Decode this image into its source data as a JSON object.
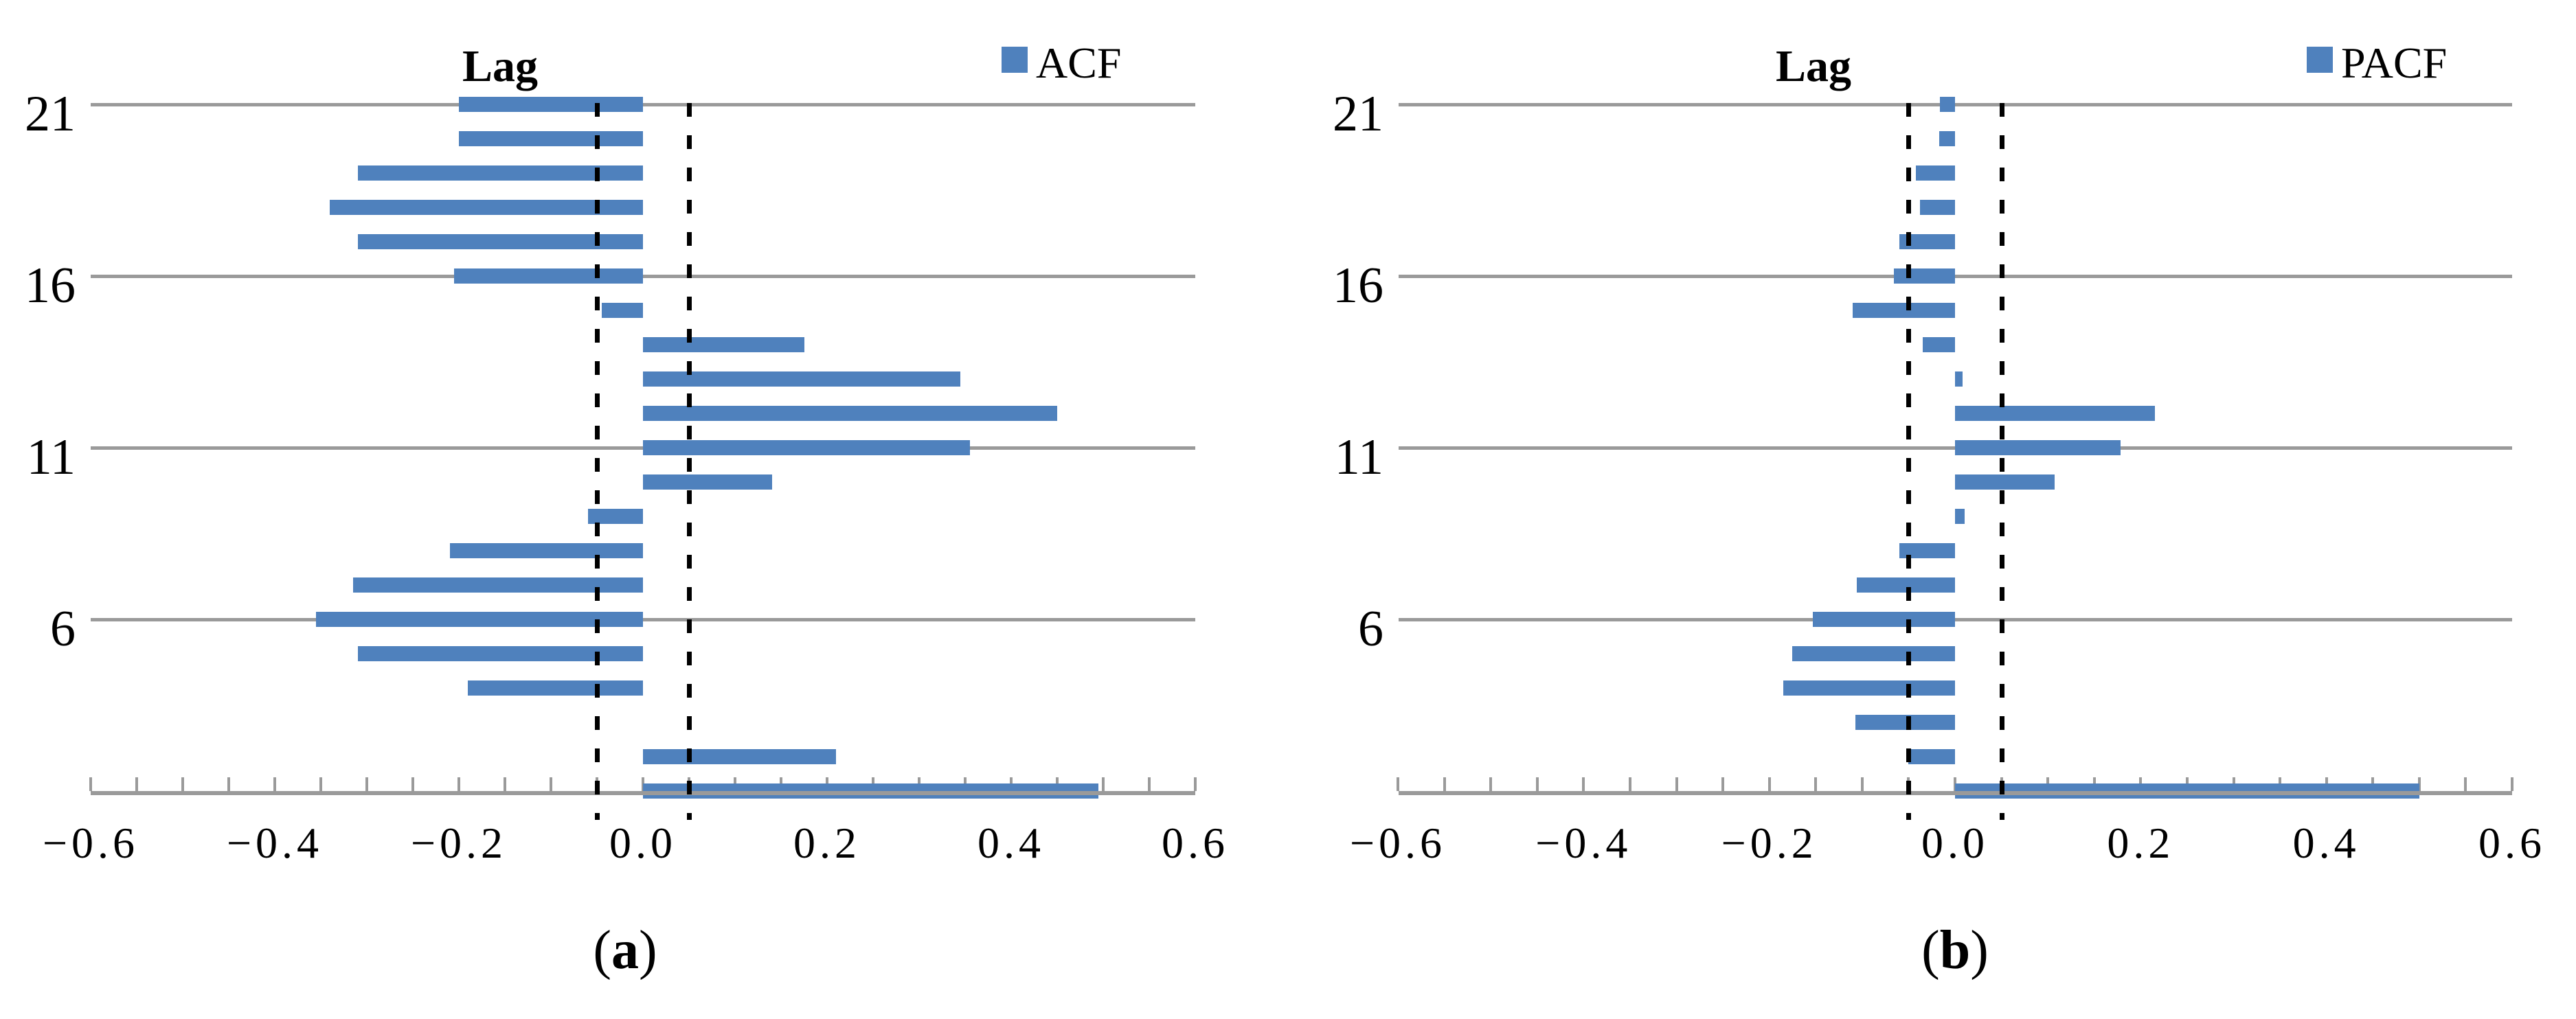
{
  "figure": {
    "background": "#ffffff",
    "bar_color": "#4F81BD",
    "axis_color": "#9A9A9A",
    "bound_line_color": "#000000"
  },
  "chart_data": [
    {
      "type": "bar",
      "orientation": "horizontal",
      "panel": "a",
      "title": "Lag",
      "legend": "ACF",
      "caption_open": "(",
      "caption_letter": "a",
      "caption_close": ")",
      "xlim": [
        -0.6,
        0.6
      ],
      "minor_tick_step": 0.05,
      "x_tick_values": [
        -0.6,
        -0.4,
        -0.2,
        0,
        0.2,
        0.4,
        0.6
      ],
      "x_tick_labels": [
        "−0.6",
        "−0.4",
        "−0.2",
        "0.0",
        "0.2",
        "0.4",
        "0.6"
      ],
      "lag_gridlines": [
        21,
        16,
        11,
        6
      ],
      "lag_labels": [
        "21",
        "16",
        "11",
        "6"
      ],
      "confidence_bounds": [
        -0.05,
        0.05
      ],
      "grid": true,
      "legend_position": "top-right",
      "lags": [
        1,
        2,
        3,
        4,
        5,
        6,
        7,
        8,
        9,
        10,
        11,
        12,
        13,
        14,
        15,
        16,
        17,
        18,
        19,
        20,
        21
      ],
      "values": [
        0.495,
        0.21,
        0.0,
        -0.19,
        -0.31,
        -0.355,
        -0.315,
        -0.21,
        -0.06,
        0.14,
        0.355,
        0.45,
        0.345,
        0.175,
        -0.045,
        -0.205,
        -0.31,
        -0.34,
        -0.31,
        -0.2,
        -0.2
      ]
    },
    {
      "type": "bar",
      "orientation": "horizontal",
      "panel": "b",
      "title": "Lag",
      "legend": "PACF",
      "caption_open": "(",
      "caption_letter": "b",
      "caption_close": ")",
      "xlim": [
        -0.6,
        0.6
      ],
      "minor_tick_step": 0.05,
      "x_tick_values": [
        -0.6,
        -0.4,
        -0.2,
        0,
        0.2,
        0.4,
        0.6
      ],
      "x_tick_labels": [
        "−0.6",
        "−0.4",
        "−0.2",
        "0.0",
        "0.2",
        "0.4",
        "0.6"
      ],
      "lag_gridlines": [
        21,
        16,
        11,
        6
      ],
      "lag_labels": [
        "21",
        "16",
        "11",
        "6"
      ],
      "confidence_bounds": [
        -0.05,
        0.05
      ],
      "grid": true,
      "legend_position": "top-right",
      "lags": [
        1,
        2,
        3,
        4,
        5,
        6,
        7,
        8,
        9,
        10,
        11,
        12,
        13,
        14,
        15,
        16,
        17,
        18,
        19,
        20,
        21
      ],
      "values": [
        0.5,
        -0.05,
        -0.107,
        -0.185,
        -0.175,
        -0.153,
        -0.106,
        -0.06,
        0.01,
        0.107,
        0.178,
        0.215,
        0.008,
        -0.035,
        -0.11,
        -0.066,
        -0.06,
        -0.038,
        -0.042,
        -0.017,
        -0.016
      ]
    }
  ]
}
